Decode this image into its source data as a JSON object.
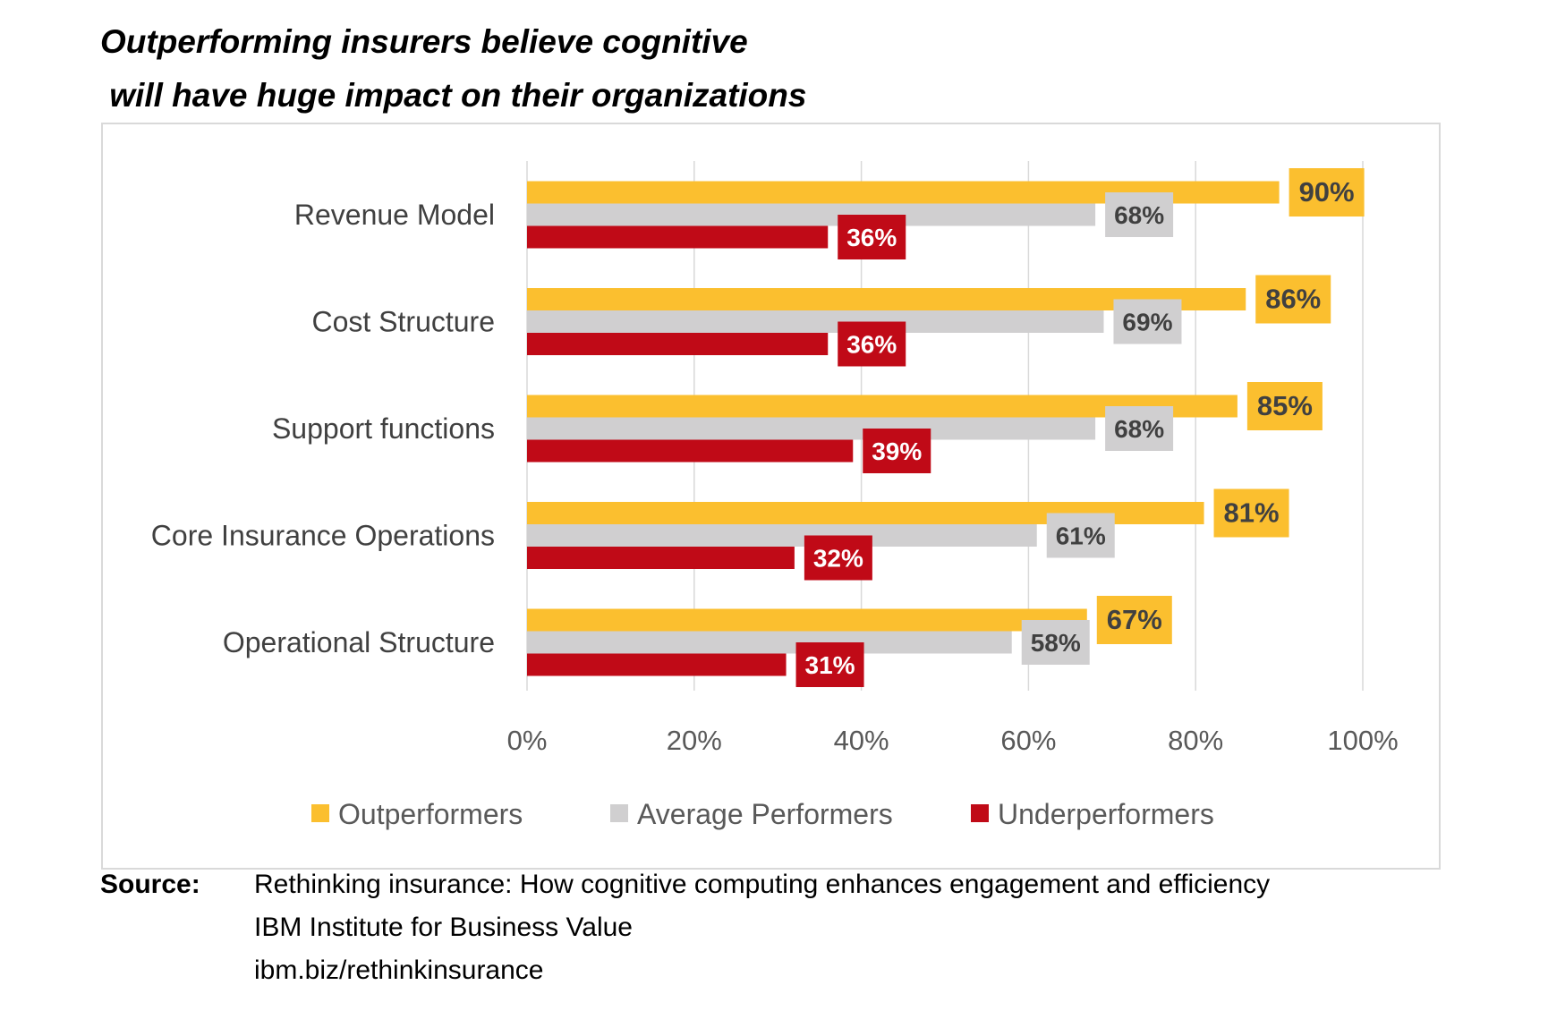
{
  "title_line1": "Outperforming insurers believe cognitive",
  "title_line2": " will have huge impact on their organizations",
  "chart_data": {
    "type": "bar",
    "orientation": "horizontal",
    "categories": [
      "Revenue Model",
      "Cost Structure",
      "Support functions",
      "Core Insurance Operations",
      "Operational Structure"
    ],
    "series": [
      {
        "name": "Outperformers",
        "color": "#FBBF2F",
        "label_text_color": "#404040",
        "values": [
          90,
          86,
          85,
          81,
          67
        ]
      },
      {
        "name": "Average Performers",
        "color": "#D0CFD0",
        "label_text_color": "#404040",
        "values": [
          68,
          69,
          68,
          61,
          58
        ]
      },
      {
        "name": "Underperformers",
        "color": "#C00A17",
        "label_text_color": "#FFFFFF",
        "values": [
          36,
          36,
          39,
          32,
          31
        ]
      }
    ],
    "xlim": [
      0,
      100
    ],
    "xticks": [
      "0%",
      "20%",
      "40%",
      "60%",
      "80%",
      "100%"
    ],
    "value_format": "percent",
    "grid": true,
    "legend": "bottom"
  },
  "source": {
    "label": "Source:",
    "lines": [
      "Rethinking insurance:   How cognitive computing enhances engagement and efficiency",
      "IBM Institute for Business Value",
      "ibm.biz/rethinkinsurance"
    ]
  }
}
